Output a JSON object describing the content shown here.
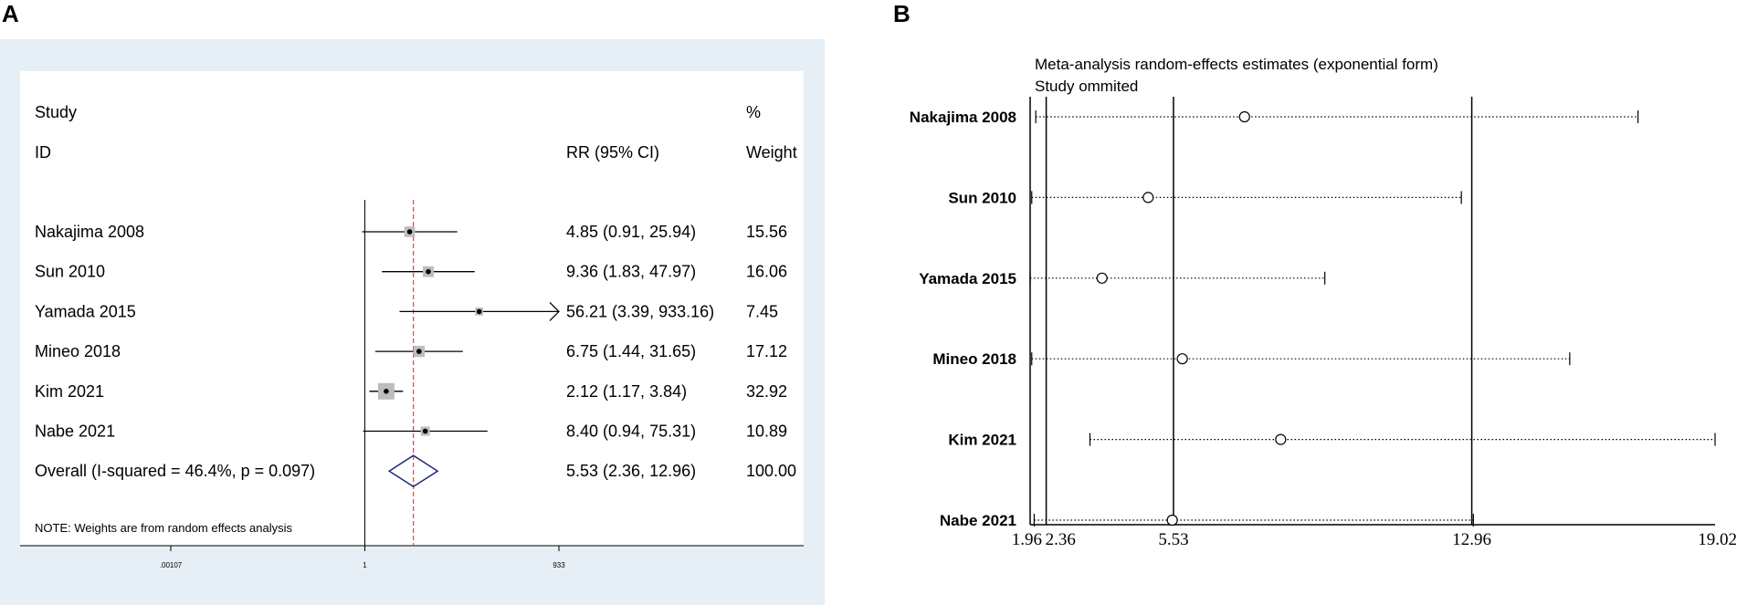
{
  "panel_a": {
    "label": "A"
  },
  "panel_b": {
    "label": "B"
  },
  "chart_data": [
    {
      "type": "forest",
      "panel": "A",
      "header": {
        "study_line1": "Study",
        "study_line2": "ID",
        "effect_header": "RR (95% CI)",
        "weight_line1": "%",
        "weight_line2": "Weight"
      },
      "x_scale": "log",
      "xlim": [
        0.00107,
        933
      ],
      "x_ticks": [
        0.00107,
        1,
        933
      ],
      "x_tick_labels": [
        ".00107",
        "1",
        "933"
      ],
      "null_line": 1,
      "overall_line": 5.53,
      "studies": [
        {
          "name": "Nakajima 2008",
          "rr": 4.85,
          "lower": 0.91,
          "upper": 25.94,
          "label": "4.85 (0.91, 25.94)",
          "weight": "15.56"
        },
        {
          "name": "Sun 2010",
          "rr": 9.36,
          "lower": 1.83,
          "upper": 47.97,
          "label": "9.36 (1.83, 47.97)",
          "weight": "16.06"
        },
        {
          "name": "Yamada 2015",
          "rr": 56.21,
          "lower": 3.39,
          "upper": 933.16,
          "label": "56.21 (3.39, 933.16)",
          "weight": "7.45",
          "arrow": true
        },
        {
          "name": "Mineo 2018",
          "rr": 6.75,
          "lower": 1.44,
          "upper": 31.65,
          "label": "6.75 (1.44, 31.65)",
          "weight": "17.12"
        },
        {
          "name": "Kim 2021",
          "rr": 2.12,
          "lower": 1.17,
          "upper": 3.84,
          "label": "2.12 (1.17, 3.84)",
          "weight": "32.92"
        },
        {
          "name": "Nabe 2021",
          "rr": 8.4,
          "lower": 0.94,
          "upper": 75.31,
          "label": "8.40 (0.94, 75.31)",
          "weight": "10.89"
        }
      ],
      "overall": {
        "name": "Overall  (I-squared = 46.4%, p = 0.097)",
        "rr": 5.53,
        "lower": 2.36,
        "upper": 12.96,
        "label": "5.53 (2.36, 12.96)",
        "weight": "100.00"
      },
      "note": "NOTE: Weights are from random effects analysis"
    },
    {
      "type": "sensitivity",
      "panel": "B",
      "title_line1": "Meta-analysis random-effects estimates (exponential form)",
      "title_line2": "Study ommited",
      "xlim": [
        1.96,
        19.02
      ],
      "x_ticks": [
        1.96,
        2.36,
        5.53,
        12.96,
        19.02
      ],
      "x_tick_labels": [
        "1.96",
        "2.36",
        "5.53",
        "12.96",
        "19.02"
      ],
      "vertical_lines": [
        2.36,
        5.53,
        12.96
      ],
      "rows": [
        {
          "name": "Nakajima 2008",
          "estimate": 7.3,
          "lower": 2.1,
          "upper": 17.1
        },
        {
          "name": "Sun 2010",
          "estimate": 4.9,
          "lower": 2.0,
          "upper": 12.7
        },
        {
          "name": "Yamada 2015",
          "estimate": 3.75,
          "lower": 1.96,
          "upper": 9.3
        },
        {
          "name": "Mineo 2018",
          "estimate": 5.75,
          "lower": 2.0,
          "upper": 15.4
        },
        {
          "name": "Kim 2021",
          "estimate": 8.2,
          "lower": 3.45,
          "upper": 19.02
        },
        {
          "name": "Nabe 2021",
          "estimate": 5.5,
          "lower": 2.06,
          "upper": 13.0
        }
      ]
    }
  ]
}
